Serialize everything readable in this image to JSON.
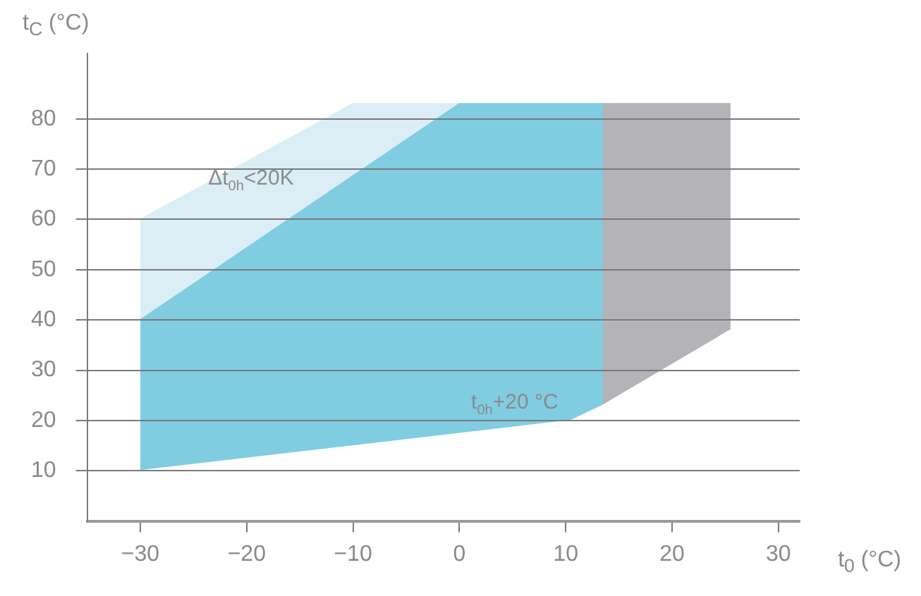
{
  "chart_data": {
    "type": "area",
    "xlabel": "t$_{0}$ (°C)",
    "ylabel": "t$_{C}$ (°C)",
    "series": [
      {
        "color": "#dbeef6",
        "x": [
          -30,
          -10,
          0
        ],
        "values": [
          60,
          83,
          83
        ]
      },
      {
        "color": "#80cde2",
        "x": [
          -30,
          0,
          13.5
        ],
        "values": [
          40,
          83,
          83
        ]
      },
      {
        "color": "#b4b3b7",
        "x": [
          13.5,
          25.5
        ],
        "values": [
          83,
          83
        ]
      },
      {
        "color": "#ffffff",
        "x": [
          -30,
          10.5,
          13.5,
          25.5
        ],
        "values": [
          10,
          20,
          23,
          38
        ]
      }
    ],
    "xlim": [
      -35,
      32
    ],
    "xticks": [
      -30,
      -20,
      -10,
      0,
      10,
      20,
      30
    ],
    "ylim": [
      0,
      93
    ],
    "yticks": [
      10,
      20,
      30,
      40,
      50,
      60,
      70,
      80
    ],
    "grid": "y",
    "legend": false,
    "annotations": [
      "Δt$_{0h}$<20K",
      "t$_{0h}$+20 °C"
    ]
  }
}
